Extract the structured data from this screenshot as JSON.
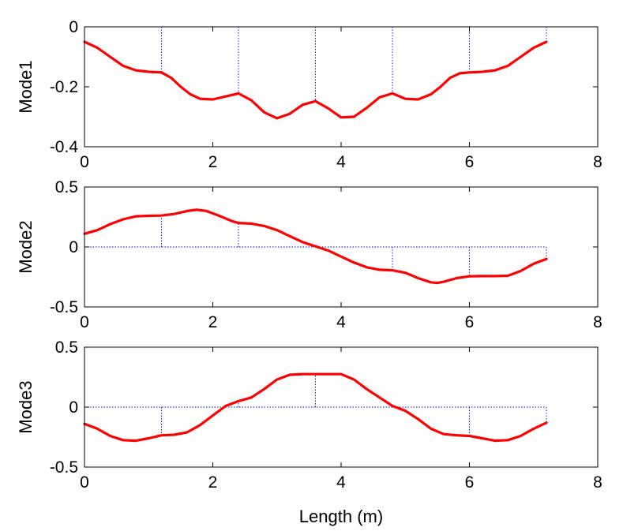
{
  "figure": {
    "xlabel": "Length (m)"
  },
  "chart_data": [
    {
      "type": "line",
      "ylabel": "Mode1",
      "xlim": [
        0,
        8
      ],
      "ylim": [
        -0.4,
        0
      ],
      "xticks": [
        "0",
        "2",
        "4",
        "6",
        "8"
      ],
      "yticks": [
        "0",
        "-0.2",
        "-0.4"
      ],
      "ytick_values": [
        0,
        -0.2,
        -0.4
      ],
      "stems_x": [
        1.2,
        2.4,
        3.6,
        4.8,
        6.0,
        7.2
      ],
      "series": [
        {
          "color": "#ff0000",
          "x": [
            0,
            0.2,
            0.4,
            0.6,
            0.8,
            1.0,
            1.2,
            1.35,
            1.5,
            1.65,
            1.8,
            2.0,
            2.2,
            2.4,
            2.6,
            2.8,
            3.0,
            3.2,
            3.4,
            3.6,
            3.8,
            4.0,
            4.2,
            4.4,
            4.6,
            4.8,
            5.0,
            5.2,
            5.4,
            5.55,
            5.7,
            5.85,
            6.0,
            6.2,
            6.4,
            6.6,
            6.8,
            7.0,
            7.2
          ],
          "y": [
            -0.05,
            -0.07,
            -0.1,
            -0.13,
            -0.145,
            -0.15,
            -0.152,
            -0.17,
            -0.2,
            -0.225,
            -0.24,
            -0.242,
            -0.232,
            -0.222,
            -0.245,
            -0.285,
            -0.305,
            -0.29,
            -0.26,
            -0.248,
            -0.272,
            -0.302,
            -0.3,
            -0.27,
            -0.235,
            -0.222,
            -0.24,
            -0.242,
            -0.225,
            -0.2,
            -0.17,
            -0.155,
            -0.152,
            -0.15,
            -0.145,
            -0.13,
            -0.1,
            -0.07,
            -0.05
          ]
        }
      ]
    },
    {
      "type": "line",
      "ylabel": "Mode2",
      "xlim": [
        0,
        8
      ],
      "ylim": [
        -0.5,
        0.5
      ],
      "xticks": [
        "0",
        "2",
        "4",
        "6",
        "8"
      ],
      "yticks": [
        "0.5",
        "0",
        "-0.5"
      ],
      "ytick_values": [
        0.5,
        0,
        -0.5
      ],
      "stems_x": [
        1.2,
        2.4,
        3.6,
        4.8,
        6.0,
        7.2
      ],
      "series": [
        {
          "color": "#ff0000",
          "x": [
            0,
            0.2,
            0.4,
            0.6,
            0.8,
            1.0,
            1.2,
            1.4,
            1.6,
            1.75,
            1.9,
            2.1,
            2.3,
            2.4,
            2.6,
            2.8,
            3.0,
            3.2,
            3.4,
            3.6,
            3.8,
            4.0,
            4.2,
            4.4,
            4.6,
            4.8,
            5.0,
            5.2,
            5.4,
            5.5,
            5.6,
            5.8,
            6.0,
            6.2,
            6.4,
            6.6,
            6.8,
            7.0,
            7.2
          ],
          "y": [
            0.11,
            0.14,
            0.19,
            0.23,
            0.255,
            0.26,
            0.262,
            0.275,
            0.3,
            0.31,
            0.3,
            0.26,
            0.215,
            0.2,
            0.195,
            0.175,
            0.14,
            0.09,
            0.04,
            0.005,
            -0.03,
            -0.08,
            -0.13,
            -0.17,
            -0.19,
            -0.195,
            -0.215,
            -0.26,
            -0.295,
            -0.3,
            -0.29,
            -0.26,
            -0.245,
            -0.243,
            -0.243,
            -0.24,
            -0.2,
            -0.14,
            -0.1
          ]
        }
      ]
    },
    {
      "type": "line",
      "ylabel": "Mode3",
      "xlim": [
        0,
        8
      ],
      "ylim": [
        -0.5,
        0.5
      ],
      "xticks": [
        "0",
        "2",
        "4",
        "6",
        "8"
      ],
      "yticks": [
        "0.5",
        "0",
        "-0.5"
      ],
      "ytick_values": [
        0.5,
        0,
        -0.5
      ],
      "stems_x": [
        1.2,
        2.4,
        3.6,
        4.8,
        6.0,
        7.2
      ],
      "series": [
        {
          "color": "#ff0000",
          "x": [
            0,
            0.2,
            0.4,
            0.6,
            0.8,
            1.0,
            1.2,
            1.4,
            1.6,
            1.8,
            2.0,
            2.2,
            2.4,
            2.6,
            2.8,
            3.0,
            3.2,
            3.4,
            3.6,
            3.8,
            4.0,
            4.2,
            4.4,
            4.6,
            4.8,
            5.0,
            5.2,
            5.4,
            5.6,
            5.8,
            6.0,
            6.2,
            6.4,
            6.6,
            6.8,
            7.0,
            7.2
          ],
          "y": [
            -0.14,
            -0.18,
            -0.24,
            -0.275,
            -0.28,
            -0.26,
            -0.235,
            -0.23,
            -0.21,
            -0.15,
            -0.07,
            0.01,
            0.05,
            0.08,
            0.15,
            0.23,
            0.27,
            0.275,
            0.275,
            0.275,
            0.275,
            0.23,
            0.15,
            0.08,
            0.01,
            -0.03,
            -0.1,
            -0.18,
            -0.225,
            -0.235,
            -0.24,
            -0.26,
            -0.28,
            -0.275,
            -0.24,
            -0.18,
            -0.13
          ]
        }
      ]
    }
  ]
}
